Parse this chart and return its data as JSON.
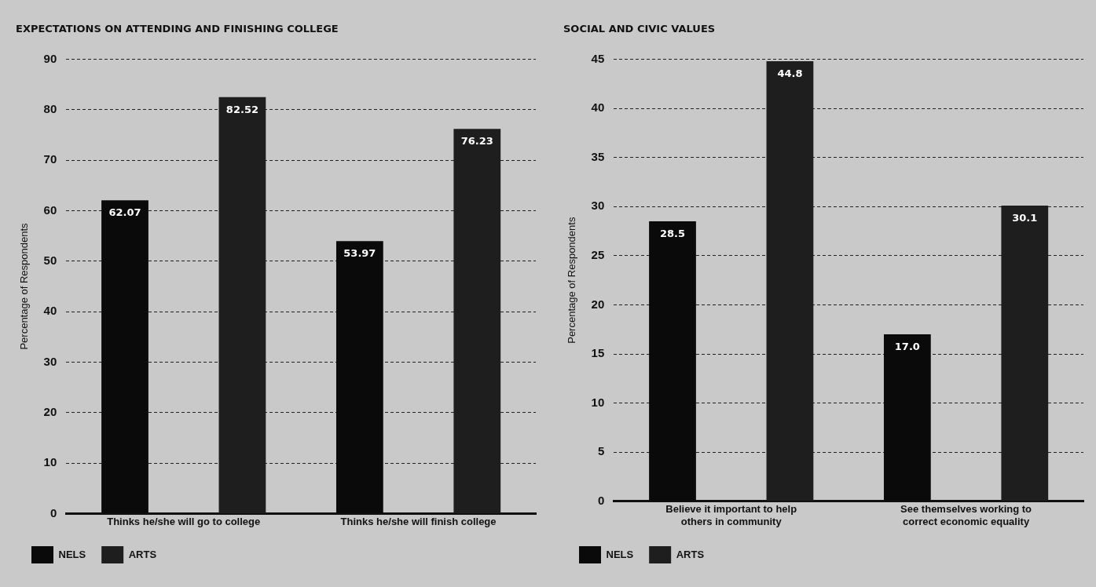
{
  "chart_data": [
    {
      "type": "bar",
      "title": "EXPECTATIONS ON ATTENDING AND FINISHING COLLEGE",
      "ylabel": "Percentage of Respondents",
      "categories": [
        "Thinks he/she will go to college",
        "Thinks he/she will finish college"
      ],
      "series": [
        {
          "name": "NELS",
          "color": "#0a0a0a",
          "values": [
            62.07,
            53.97
          ]
        },
        {
          "name": "ARTS",
          "color": "#1e1e1e",
          "values": [
            82.52,
            76.23
          ]
        }
      ],
      "ylim": [
        0,
        90
      ],
      "yticks": [
        0,
        10,
        20,
        30,
        40,
        50,
        60,
        70,
        80,
        90
      ],
      "grid": "y",
      "line_style": "dashed",
      "legend": "bottom left",
      "data_labels": true
    },
    {
      "type": "bar",
      "title": "SOCIAL AND CIVIC VALUES",
      "ylabel": "Percentage of Respondents",
      "categories": [
        "Believe it important to help others in community",
        "See themselves working to correct economic equality"
      ],
      "series": [
        {
          "name": "NELS",
          "color": "#0a0a0a",
          "values": [
            28.5,
            17.0
          ],
          "value_labels": [
            "28.5",
            "17.0"
          ]
        },
        {
          "name": "ARTS",
          "color": "#1e1e1e",
          "values": [
            44.8,
            30.1
          ],
          "value_labels": [
            "44.8",
            "30.1"
          ]
        }
      ],
      "ylim": [
        0,
        45
      ],
      "yticks": [
        0,
        5,
        10,
        15,
        20,
        25,
        30,
        35,
        40,
        45
      ],
      "grid": "y",
      "line_style": "dashed",
      "legend": "bottom left"
    }
  ]
}
